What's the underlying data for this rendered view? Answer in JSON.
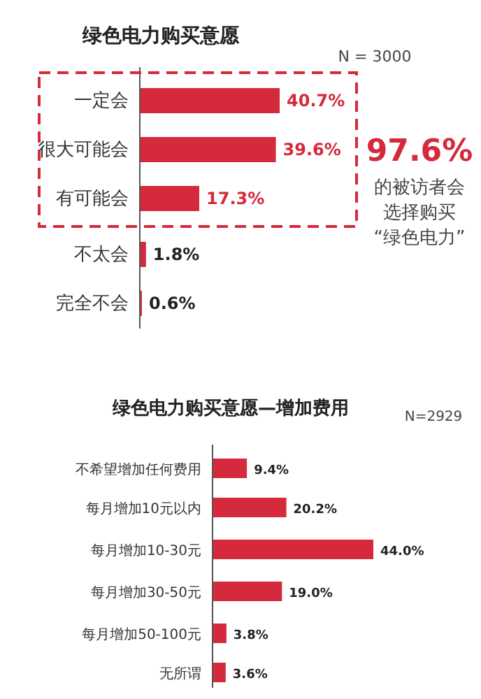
{
  "chart_data": [
    {
      "type": "bar",
      "orientation": "horizontal",
      "title": "绿色电力购买意愿",
      "categories": [
        "一定会",
        "很大可能会",
        "有可能会",
        "不太会",
        "完全不会"
      ],
      "values": [
        40.7,
        39.6,
        17.3,
        1.8,
        0.6
      ],
      "value_labels": [
        "40.7%",
        "39.6%",
        "17.3%",
        "1.8%",
        "0.6%"
      ],
      "color": "#d42a3c",
      "annotations": [
        "N = 3000",
        "97.6%",
        "的被访者会",
        "选择购买",
        "“绿色电力”"
      ]
    },
    {
      "type": "bar",
      "orientation": "horizontal",
      "title": "绿色电力购买意愿—增加费用",
      "categories": [
        "不希望增加任何费用",
        "每月增加10元以内",
        "每月增加10-30元",
        "每月增加30-50元",
        "每月增加50-100元",
        "无所谓"
      ],
      "values": [
        9.4,
        20.2,
        44.0,
        19.0,
        3.8,
        3.6
      ],
      "value_labels": [
        "9.4%",
        "20.2%",
        "44.0%",
        "19.0%",
        "3.8%",
        "3.6%"
      ],
      "color": "#d42a3c",
      "annotations": [
        "N=2929"
      ]
    }
  ]
}
